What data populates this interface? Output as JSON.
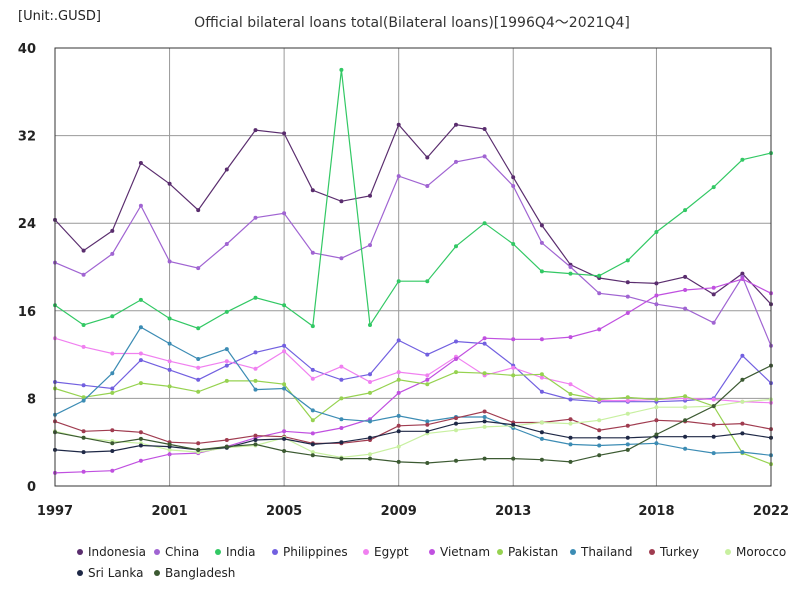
{
  "chart_data": {
    "type": "line",
    "title": "Official bilateral loans total(Bilateral loans)[1996Q4～2021Q4]",
    "unit_label": "[Unit:.GUSD]",
    "xlabel": "",
    "ylabel": "",
    "xlim": [
      1997,
      2022
    ],
    "ylim": [
      0,
      40
    ],
    "x_ticks": [
      1997,
      2001,
      2005,
      2009,
      2013,
      2018,
      2022
    ],
    "y_ticks": [
      0,
      8,
      16,
      24,
      32,
      40
    ],
    "grid": true,
    "legend_position": "bottom",
    "x": [
      1997,
      1998,
      1999,
      2000,
      2001,
      2002,
      2003,
      2004,
      2005,
      2006,
      2007,
      2008,
      2009,
      2010,
      2011,
      2012,
      2013,
      2014,
      2015,
      2016,
      2017,
      2018,
      2019,
      2020,
      2021,
      2022
    ],
    "series": [
      {
        "name": "Indonesia",
        "color": "#5a2d6e",
        "values": [
          24.3,
          21.5,
          23.3,
          29.5,
          27.6,
          25.2,
          28.9,
          32.5,
          32.2,
          27.0,
          26.0,
          26.5,
          33.0,
          30.0,
          33.0,
          32.6,
          28.2,
          23.8,
          20.2,
          19.0,
          18.6,
          18.5,
          19.1,
          17.5,
          19.4,
          16.6
        ]
      },
      {
        "name": "China",
        "color": "#a064d2",
        "values": [
          20.4,
          19.3,
          21.2,
          25.6,
          20.5,
          19.9,
          22.1,
          24.5,
          24.9,
          21.3,
          20.8,
          22.0,
          28.3,
          27.4,
          29.6,
          30.1,
          27.4,
          22.2,
          20.0,
          17.6,
          17.3,
          16.6,
          16.2,
          14.9,
          19.1,
          12.8
        ]
      },
      {
        "name": "India",
        "color": "#32c864",
        "values": [
          16.5,
          14.7,
          15.5,
          17.0,
          15.3,
          14.4,
          15.9,
          17.2,
          16.5,
          14.6,
          38.0,
          14.7,
          18.7,
          18.7,
          21.9,
          24.0,
          22.1,
          19.6,
          19.4,
          19.2,
          20.6,
          23.2,
          25.2,
          27.3,
          29.8,
          30.4
        ]
      },
      {
        "name": "Philippines",
        "color": "#7260e0",
        "values": [
          9.5,
          9.2,
          8.9,
          11.5,
          10.6,
          9.7,
          11.0,
          12.2,
          12.8,
          10.6,
          9.7,
          10.2,
          13.3,
          12.0,
          13.2,
          13.0,
          11.0,
          8.6,
          7.9,
          7.7,
          7.7,
          7.7,
          7.8,
          8.0,
          11.9,
          9.4
        ]
      },
      {
        "name": "Egypt",
        "color": "#f080f0",
        "values": [
          13.5,
          12.7,
          12.1,
          12.1,
          11.4,
          10.8,
          11.4,
          10.7,
          12.3,
          9.8,
          10.9,
          9.5,
          10.4,
          10.1,
          11.8,
          10.1,
          10.8,
          9.9,
          9.3,
          7.8,
          7.8,
          7.9,
          8.0,
          7.9,
          7.7,
          7.6
        ]
      },
      {
        "name": "Vietnam",
        "color": "#c050e0",
        "values": [
          1.2,
          1.3,
          1.4,
          2.3,
          2.9,
          3.0,
          3.6,
          4.4,
          5.0,
          4.8,
          5.3,
          6.1,
          8.5,
          9.7,
          11.6,
          13.5,
          13.4,
          13.4,
          13.6,
          14.3,
          15.8,
          17.4,
          17.9,
          18.1,
          18.9,
          17.6
        ]
      },
      {
        "name": "Pakistan",
        "color": "#96d250",
        "values": [
          8.9,
          8.1,
          8.5,
          9.4,
          9.1,
          8.6,
          9.6,
          9.6,
          9.3,
          6.0,
          8.0,
          8.5,
          9.7,
          9.3,
          10.4,
          10.3,
          10.1,
          10.2,
          8.4,
          7.9,
          8.1,
          7.9,
          8.2,
          7.3,
          3.0,
          2.0
        ]
      },
      {
        "name": "Thailand",
        "color": "#3c8cb4",
        "values": [
          6.5,
          7.8,
          10.3,
          14.5,
          13.0,
          11.6,
          12.5,
          8.8,
          8.9,
          6.9,
          6.1,
          5.9,
          6.4,
          5.9,
          6.3,
          6.3,
          5.3,
          4.3,
          3.8,
          3.7,
          3.8,
          3.9,
          3.4,
          3.0,
          3.1,
          2.8
        ]
      },
      {
        "name": "Turkey",
        "color": "#a03c50",
        "values": [
          5.9,
          5.0,
          5.1,
          4.9,
          4.0,
          3.9,
          4.2,
          4.6,
          4.5,
          3.9,
          3.9,
          4.2,
          5.5,
          5.6,
          6.2,
          6.8,
          5.8,
          5.8,
          6.1,
          5.1,
          5.5,
          6.0,
          5.9,
          5.6,
          5.7,
          5.2
        ]
      },
      {
        "name": "Morocco",
        "color": "#c8f0a0",
        "values": [
          5.0,
          4.4,
          4.1,
          3.9,
          3.3,
          3.1,
          3.5,
          3.7,
          4.4,
          3.1,
          2.6,
          2.9,
          3.6,
          4.8,
          5.1,
          5.4,
          5.5,
          5.8,
          5.7,
          6.0,
          6.6,
          7.2,
          7.2,
          7.3,
          7.7,
          7.9
        ]
      },
      {
        "name": "Sri Lanka",
        "color": "#1e2846",
        "values": [
          3.3,
          3.1,
          3.2,
          3.7,
          3.6,
          3.3,
          3.5,
          4.2,
          4.3,
          3.8,
          4.0,
          4.4,
          5.0,
          5.0,
          5.7,
          5.9,
          5.6,
          4.9,
          4.4,
          4.4,
          4.4,
          4.5,
          4.5,
          4.5,
          4.8,
          4.4
        ]
      },
      {
        "name": "Bangladesh",
        "color": "#3c5a32",
        "values": [
          4.9,
          4.4,
          3.9,
          4.3,
          3.8,
          3.3,
          3.6,
          3.8,
          3.2,
          2.8,
          2.5,
          2.5,
          2.2,
          2.1,
          2.3,
          2.5,
          2.5,
          2.4,
          2.2,
          2.8,
          3.3,
          4.7,
          6.0,
          7.3,
          9.7,
          11.0
        ]
      }
    ]
  }
}
